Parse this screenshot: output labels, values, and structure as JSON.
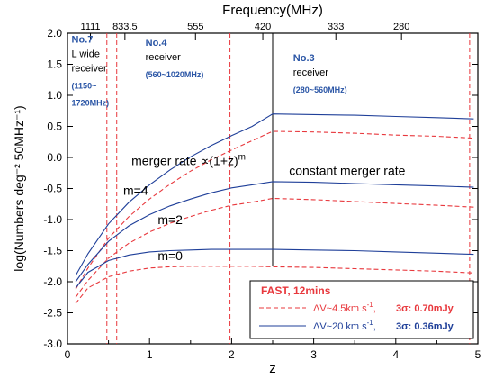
{
  "chart_data": {
    "type": "line",
    "xlabel": "z",
    "ylabel": "log(Numbers deg⁻² 50MHz⁻¹)",
    "xlim": [
      0,
      5
    ],
    "ylim": [
      -3.0,
      2.0
    ],
    "x_ticks": [
      "0",
      "1",
      "2",
      "3",
      "4",
      "5"
    ],
    "y_ticks": [
      "-3.0",
      "-2.5",
      "-2.0",
      "-1.5",
      "-1.0",
      "-0.5",
      "0.0",
      "0.5",
      "1.0",
      "1.5",
      "2.0"
    ],
    "top_axis": {
      "label": "Frequency(MHz)",
      "ticks": [
        {
          "z": 0.28,
          "label": "1111"
        },
        {
          "z": 0.7,
          "label": "833.5"
        },
        {
          "z": 1.56,
          "label": "555"
        },
        {
          "z": 2.38,
          "label": "420"
        },
        {
          "z": 3.27,
          "label": "333"
        },
        {
          "z": 4.07,
          "label": "280"
        }
      ]
    },
    "series": [
      {
        "group": "m=4",
        "style": "solid",
        "color": "#1f3f99",
        "x": [
          0.1,
          0.25,
          0.5,
          0.75,
          1.0,
          1.25,
          1.5,
          1.75,
          2.0,
          2.25,
          2.5,
          3.0,
          3.5,
          4.0,
          4.5,
          4.95
        ],
        "y": [
          -1.9,
          -1.55,
          -1.07,
          -0.72,
          -0.44,
          -0.2,
          0.01,
          0.19,
          0.35,
          0.5,
          0.7,
          0.69,
          0.68,
          0.66,
          0.64,
          0.62
        ]
      },
      {
        "group": "m=4",
        "style": "dashed",
        "color": "#e8383d",
        "x": [
          0.1,
          0.25,
          0.5,
          0.75,
          1.0,
          1.25,
          1.5,
          1.75,
          2.0,
          2.25,
          2.5,
          3.0,
          3.5,
          4.0,
          4.5,
          4.95
        ],
        "y": [
          -2.12,
          -1.78,
          -1.3,
          -0.95,
          -0.67,
          -0.43,
          -0.22,
          -0.04,
          0.12,
          0.27,
          0.42,
          0.41,
          0.39,
          0.36,
          0.34,
          0.31
        ]
      },
      {
        "group": "m=2",
        "style": "solid",
        "color": "#1f3f99",
        "x": [
          0.1,
          0.25,
          0.5,
          0.75,
          1.0,
          1.25,
          1.5,
          1.75,
          2.0,
          2.25,
          2.5,
          3.0,
          3.5,
          4.0,
          4.5,
          4.95
        ],
        "y": [
          -2.0,
          -1.72,
          -1.35,
          -1.1,
          -0.92,
          -0.78,
          -0.67,
          -0.57,
          -0.49,
          -0.44,
          -0.39,
          -0.4,
          -0.42,
          -0.44,
          -0.46,
          -0.48
        ]
      },
      {
        "group": "m=2",
        "style": "dashed",
        "color": "#e8383d",
        "x": [
          0.1,
          0.25,
          0.5,
          0.75,
          1.0,
          1.25,
          1.5,
          1.75,
          2.0,
          2.25,
          2.5,
          3.0,
          3.5,
          4.0,
          4.5,
          4.95
        ],
        "y": [
          -2.25,
          -1.98,
          -1.62,
          -1.38,
          -1.2,
          -1.06,
          -0.95,
          -0.85,
          -0.77,
          -0.72,
          -0.66,
          -0.68,
          -0.71,
          -0.74,
          -0.77,
          -0.8
        ]
      },
      {
        "group": "m=0",
        "style": "solid",
        "color": "#1f3f99",
        "x": [
          0.1,
          0.25,
          0.5,
          0.75,
          1.0,
          1.25,
          1.5,
          1.75,
          2.0,
          2.25,
          2.5,
          3.0,
          3.5,
          4.0,
          4.5,
          4.95
        ],
        "y": [
          -2.1,
          -1.85,
          -1.66,
          -1.57,
          -1.52,
          -1.5,
          -1.49,
          -1.48,
          -1.48,
          -1.48,
          -1.48,
          -1.49,
          -1.5,
          -1.52,
          -1.54,
          -1.56
        ]
      },
      {
        "group": "m=0",
        "style": "dashed",
        "color": "#e8383d",
        "x": [
          0.1,
          0.25,
          0.5,
          0.75,
          1.0,
          1.25,
          1.5,
          1.75,
          2.0,
          2.25,
          2.5,
          3.0,
          3.5,
          4.0,
          4.5,
          4.95
        ],
        "y": [
          -2.35,
          -2.1,
          -1.92,
          -1.83,
          -1.78,
          -1.76,
          -1.75,
          -1.75,
          -1.75,
          -1.75,
          -1.76,
          -1.77,
          -1.79,
          -1.81,
          -1.83,
          -1.86
        ]
      }
    ],
    "vlines_dashed": [
      0.48,
      0.6,
      1.98,
      4.9
    ],
    "vline_solid": {
      "z": 2.5,
      "from": -1.75,
      "to": 2.0
    },
    "receivers": [
      {
        "title": "No.7",
        "lines": [
          "L wide",
          "receiver"
        ],
        "sub": [
          "(1150~",
          "1720MHz)"
        ],
        "z": 0.05,
        "y": 1.85
      },
      {
        "title": "No.4",
        "lines": [
          "receiver"
        ],
        "sub": [
          "(560~1020MHz)"
        ],
        "z": 0.95,
        "y": 1.8
      },
      {
        "title": "No.3",
        "lines": [
          "receiver"
        ],
        "sub": [
          "(280~560MHz)"
        ],
        "z": 2.75,
        "y": 1.55
      }
    ],
    "annotations": [
      {
        "text": "merger rate ∝(1+z)",
        "sup": "m",
        "z": 0.78,
        "y": -0.12
      },
      {
        "text": "constant merger rate",
        "z": 2.7,
        "y": -0.28
      },
      {
        "text": "m=4",
        "z": 0.68,
        "y": -0.6
      },
      {
        "text": "m=2",
        "z": 1.1,
        "y": -1.07
      },
      {
        "text": "m=0",
        "z": 1.1,
        "y": -1.65
      }
    ],
    "legend": {
      "position": "bottom-right",
      "title": "FAST, 12mins",
      "entries": [
        {
          "style": "dashed",
          "color": "#e8383d",
          "label": "ΔV~4.5km s",
          "sup": "-1",
          "sep": ",",
          "sigma": "3σ: 0.70mJy",
          "sigma_color": "#e8383d"
        },
        {
          "style": "solid",
          "color": "#1f3f99",
          "label": "ΔV~20 km s",
          "sup": "-1",
          "sep": ",",
          "sigma": "3σ: 0.36mJy",
          "sigma_color": "#1f3f99"
        }
      ]
    }
  }
}
